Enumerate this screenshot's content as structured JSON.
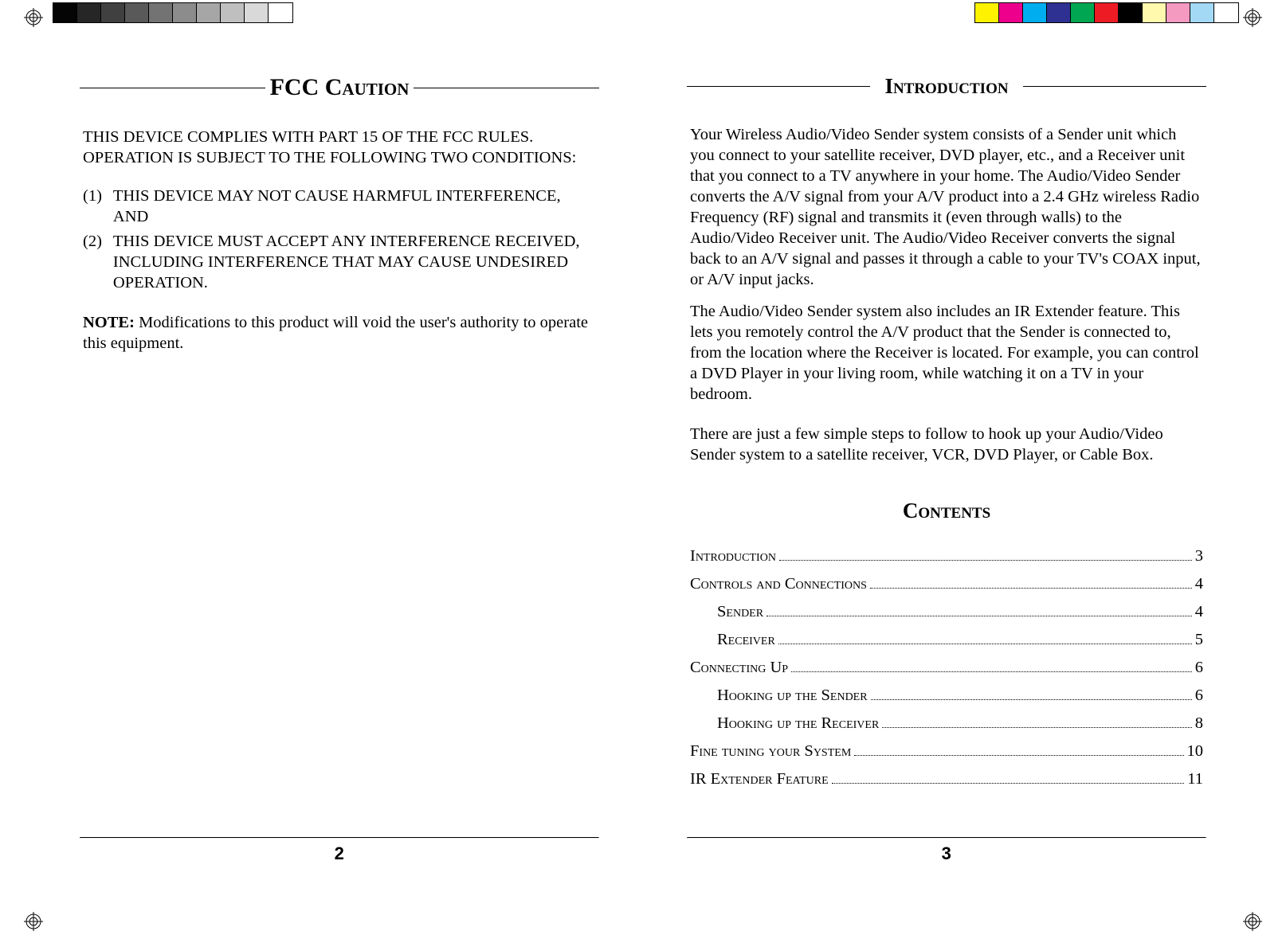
{
  "registration_mark_color": "#000000",
  "colorbars": {
    "left": [
      "#050505",
      "#262626",
      "#404040",
      "#595959",
      "#737373",
      "#8c8c8c",
      "#a6a6a6",
      "#bfbfbf",
      "#d9d9d9",
      "#ffffff"
    ],
    "left_border": "#000000",
    "right": [
      "#fff200",
      "#ec008c",
      "#00aeef",
      "#2e3192",
      "#00a651",
      "#ed1c24",
      "#000000",
      "#fff9ae",
      "#f49ac1",
      "#a3d9f5",
      "#ffffff"
    ],
    "right_border": "#000000"
  },
  "left_page": {
    "title": "FCC Caution",
    "intro": "THIS DEVICE COMPLIES WITH PART 15 OF THE FCC RULES. OPERATION IS SUBJECT TO THE FOLLOWING TWO CONDITIONS:",
    "items": [
      {
        "num": "(1)",
        "text": "THIS DEVICE MAY NOT CAUSE HARMFUL INTERFERENCE, AND"
      },
      {
        "num": "(2)",
        "text": "THIS DEVICE MUST ACCEPT ANY INTERFERENCE RECEIVED, INCLUDING  INTERFERENCE THAT MAY CAUSE UNDESIRED OPERATION."
      }
    ],
    "note_label": "NOTE:",
    "note_text": " Modifications to this product will void the user's authority to operate this equipment.",
    "page_number": "2"
  },
  "right_page": {
    "title": "Introduction",
    "para1": "Your Wireless Audio/Video Sender system consists of a Sender unit which you connect to your satellite receiver, DVD player, etc., and a Receiver unit that you connect to a TV anywhere in your home. The Audio/Video Sender converts the A/V signal from your A/V product into a 2.4 GHz wireless Radio Frequency (RF) signal and transmits it (even through walls) to the Audio/Video Receiver unit. The Audio/Video Receiver converts the signal back to an A/V signal and passes it through a cable to your TV's COAX input, or A/V input jacks.",
    "para2": "The Audio/Video Sender system also includes an IR Extender feature. This lets you remotely control the A/V product that the Sender is connected to, from the location where the Receiver is located. For example, you can control a DVD Player in your living room, while watching it on a TV in your bedroom.",
    "para3": "There are just a few simple steps to follow to hook up your Audio/Video Sender system to a satellite receiver, VCR, DVD Player, or Cable Box.",
    "contents_title": "Contents",
    "toc": [
      {
        "label": "Introduction",
        "page": "3",
        "indent": false
      },
      {
        "label": "Controls and Connections",
        "page": "4",
        "indent": false
      },
      {
        "label": "Sender",
        "page": "4",
        "indent": true
      },
      {
        "label": "Receiver",
        "page": "5",
        "indent": true
      },
      {
        "label": "Connecting Up",
        "page": "6",
        "indent": false
      },
      {
        "label": "Hooking up the Sender",
        "page": "6",
        "indent": true
      },
      {
        "label": "Hooking up the Receiver",
        "page": "8",
        "indent": true
      },
      {
        "label": "Fine tuning your System",
        "page": "10",
        "indent": false
      },
      {
        "label": "IR Extender Feature",
        "page": "11",
        "indent": false
      }
    ],
    "page_number": "3"
  }
}
